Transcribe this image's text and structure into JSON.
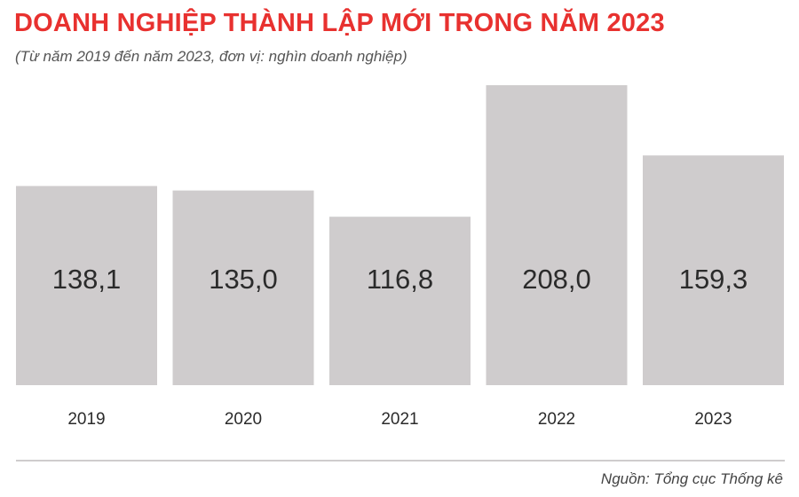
{
  "chart_data": {
    "type": "bar",
    "title": "DOANH NGHIỆP THÀNH LẬP MỚI TRONG NĂM 2023",
    "subtitle": "(Từ năm 2019 đến năm 2023, đơn vị: nghìn doanh nghiệp)",
    "categories": [
      "2019",
      "2020",
      "2021",
      "2022",
      "2023"
    ],
    "values": [
      138.1,
      135.0,
      116.8,
      208.0,
      159.3
    ],
    "value_labels": [
      "138,1",
      "135,0",
      "116,8",
      "208,0",
      "159,3"
    ],
    "ylim": [
      0,
      208
    ],
    "grid": false,
    "legend": "none",
    "bar_color": "#cfcccd",
    "source": "Nguồn: Tổng cục Thống kê"
  },
  "colors": {
    "title": "#e8312f",
    "bar": "#cfcccd",
    "text": "#2b2b2b"
  }
}
